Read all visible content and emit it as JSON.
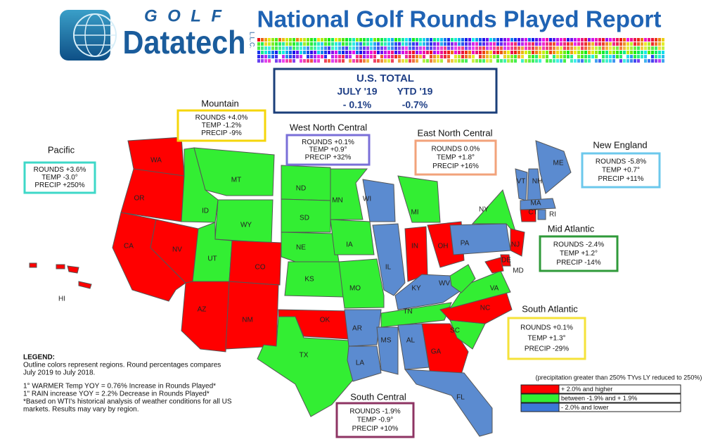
{
  "header": {
    "logo_top": "GOLF",
    "logo_main": "Datatech",
    "logo_side": "L.L.C.",
    "title": "National Golf Rounds Played Report"
  },
  "us_total": {
    "title": "U.S. TOTAL",
    "columns": [
      {
        "label": "JULY '19",
        "value": "- 0.1%"
      },
      {
        "label": "YTD '19",
        "value": "-0.7%"
      }
    ]
  },
  "regions": [
    {
      "name": "Mountain",
      "rounds": "ROUNDS +4.0%",
      "temp": "TEMP -1.2%",
      "precip": "PRECIP -9%",
      "color": "#f5d60a"
    },
    {
      "name": "West North Central",
      "rounds": "ROUNDS +0.1%",
      "temp": "TEMP +0.9°",
      "precip": "PRECIP +32%",
      "color": "#7a6fd8"
    },
    {
      "name": "East North Central",
      "rounds": "ROUNDS 0.0%",
      "temp": "TEMP +1.8°",
      "precip": "PRECIP +16%",
      "color": "#f2a27a"
    },
    {
      "name": "Pacific",
      "rounds": "ROUNDS +3.6%",
      "temp": "TEMP -3.0°",
      "precip": "PRECIP +250%",
      "color": "#3ed8c8"
    },
    {
      "name": "New England",
      "rounds": "ROUNDS -5.8%",
      "temp": "TEMP +0.7°",
      "precip": "PRECIP +11%",
      "color": "#6cc8ec"
    },
    {
      "name": "Mid Atlantic",
      "rounds": "ROUNDS -2.4%",
      "temp": "TEMP +1.2°",
      "precip": "PRECIP -14%",
      "color": "#2f9a3a"
    },
    {
      "name": "South Atlantic",
      "rounds": "ROUNDS +0.1%",
      "temp": "TEMP +1.3°",
      "precip": "PRECIP -29%",
      "color": "#f5e23a"
    },
    {
      "name": "South Central",
      "rounds": "ROUNDS -1.9%",
      "temp": "TEMP -0.9°",
      "precip": "PRECIP +10%",
      "color": "#8e3463"
    }
  ],
  "states": [
    {
      "label": "WA",
      "color": "#ff0000"
    },
    {
      "label": "OR",
      "color": "#ff0000"
    },
    {
      "label": "CA",
      "color": "#ff0000"
    },
    {
      "label": "NV",
      "color": "#ff0000"
    },
    {
      "label": "ID",
      "color": "#33ee33"
    },
    {
      "label": "MT",
      "color": "#33ee33"
    },
    {
      "label": "WY",
      "color": "#33ee33"
    },
    {
      "label": "UT",
      "color": "#33ee33"
    },
    {
      "label": "CO",
      "color": "#ff0000"
    },
    {
      "label": "AZ",
      "color": "#ff0000"
    },
    {
      "label": "NM",
      "color": "#ff0000"
    },
    {
      "label": "ND",
      "color": "#33ee33"
    },
    {
      "label": "SD",
      "color": "#33ee33"
    },
    {
      "label": "NE",
      "color": "#33ee33"
    },
    {
      "label": "KS",
      "color": "#33ee33"
    },
    {
      "label": "OK",
      "color": "#ff0000"
    },
    {
      "label": "TX",
      "color": "#33ee33"
    },
    {
      "label": "MN",
      "color": "#33ee33"
    },
    {
      "label": "IA",
      "color": "#33ee33"
    },
    {
      "label": "MO",
      "color": "#33ee33"
    },
    {
      "label": "AR",
      "color": "#5b8bd0"
    },
    {
      "label": "LA",
      "color": "#5b8bd0"
    },
    {
      "label": "WI",
      "color": "#5b8bd0"
    },
    {
      "label": "IL",
      "color": "#5b8bd0"
    },
    {
      "label": "MI",
      "color": "#33ee33"
    },
    {
      "label": "IN",
      "color": "#ff0000"
    },
    {
      "label": "OH",
      "color": "#ff0000"
    },
    {
      "label": "KY",
      "color": "#5b8bd0"
    },
    {
      "label": "TN",
      "color": "#33ee33"
    },
    {
      "label": "MS",
      "color": "#5b8bd0"
    },
    {
      "label": "AL",
      "color": "#5b8bd0"
    },
    {
      "label": "GA",
      "color": "#ff0000"
    },
    {
      "label": "FL",
      "color": "#5b8bd0"
    },
    {
      "label": "SC",
      "color": "#33ee33"
    },
    {
      "label": "NC",
      "color": "#ff0000"
    },
    {
      "label": "VA",
      "color": "#33ee33"
    },
    {
      "label": "WV",
      "color": "#33ee33"
    },
    {
      "label": "PA",
      "color": "#5b8bd0"
    },
    {
      "label": "NY",
      "color": "#33ee33"
    },
    {
      "label": "NJ",
      "color": "#ff0000"
    },
    {
      "label": "DE",
      "color": "#ff0000"
    },
    {
      "label": "MD",
      "color": "#ff0000"
    },
    {
      "label": "VT",
      "color": "#5b8bd0"
    },
    {
      "label": "NH",
      "color": "#5b8bd0"
    },
    {
      "label": "ME",
      "color": "#5b8bd0"
    },
    {
      "label": "MA",
      "color": "#5b8bd0"
    },
    {
      "label": "CT",
      "color": "#ff0000"
    },
    {
      "label": "RI",
      "color": "#5b8bd0"
    },
    {
      "label": "HI",
      "color": "#ff0000"
    }
  ],
  "legend": {
    "title": "LEGEND:",
    "lines": [
      "Outline colors represent regions. Round percentages compares",
      "July 2019 to July 2018.",
      "1° WARMER Temp YOY = 0.76% Increase in Rounds Played*",
      "1\" RAIN increase YOY = 2.2% Decrease in Rounds Played*",
      "*Based on WTI's historical analysis of weather conditions for all US",
      "markets. Results may vary by region."
    ]
  },
  "key": {
    "note": "(precipitation greater than 250% TYvs LY reduced to 250%)",
    "items": [
      {
        "label": "+ 2.0% and higher",
        "color": "#ff0000"
      },
      {
        "label": "between -1.9% and + 1.9%",
        "color": "#33ee33"
      },
      {
        "label": "- 2.0% and lower",
        "color": "#3c78d8"
      }
    ]
  }
}
